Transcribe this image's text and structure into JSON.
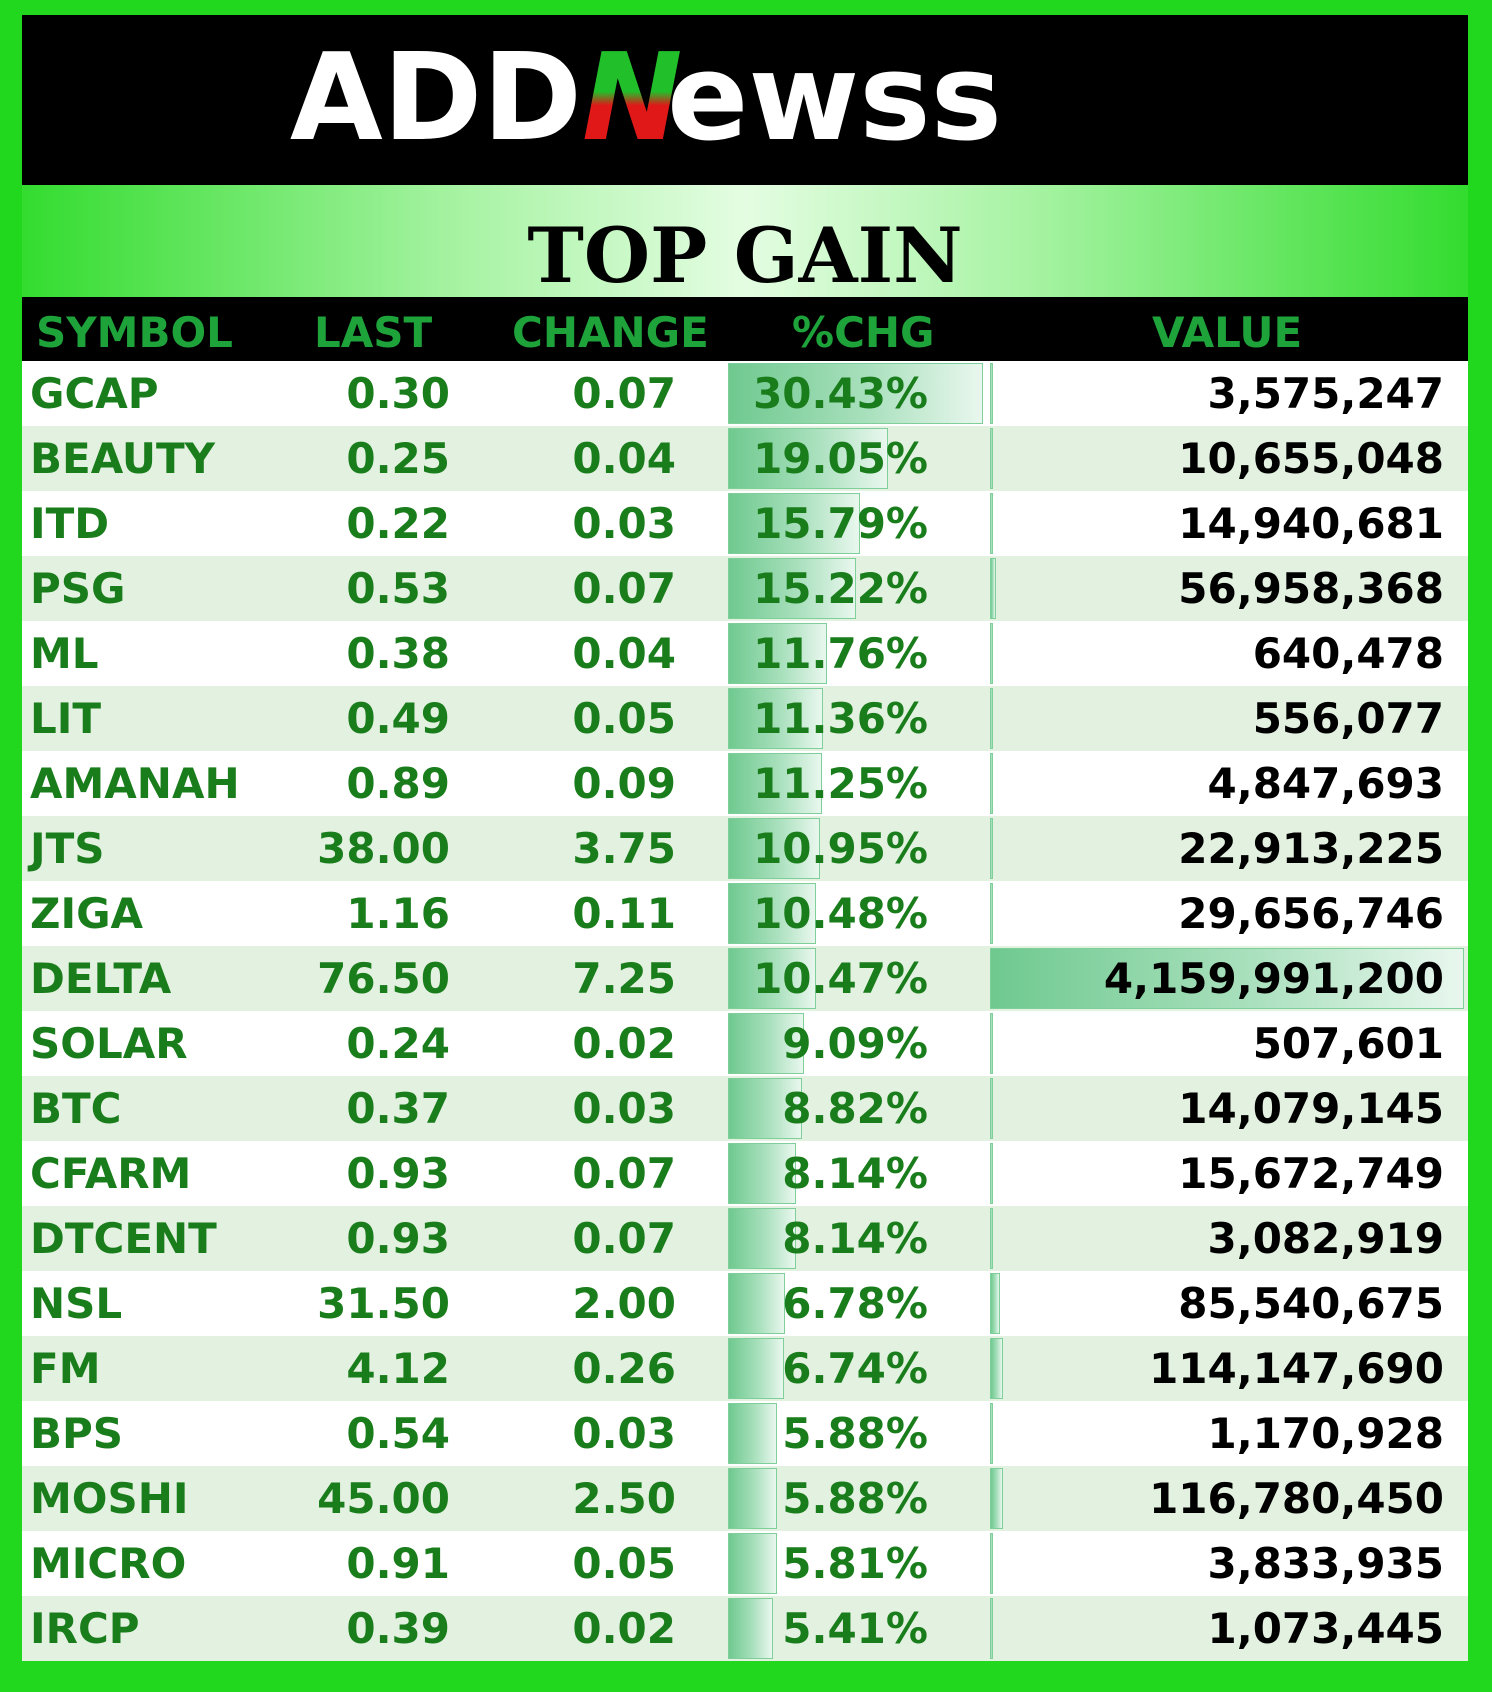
{
  "brand": {
    "logo_left": "ADD",
    "logo_mark": "N",
    "logo_right": "ewss"
  },
  "title": "TOP GAIN",
  "colors": {
    "border_green": "#22d81e",
    "header_text_green": "#1ea33b",
    "cell_text_green": "#1a7d1c",
    "row_alt": "#e3f1e0",
    "bar_fill": "#6fc98f"
  },
  "chart_data": {
    "type": "table",
    "columns": [
      "SYMBOL",
      "LAST",
      "CHANGE",
      "%CHG",
      "VALUE"
    ],
    "data_bars": {
      "columns": [
        "%CHG",
        "VALUE"
      ]
    },
    "rows": [
      {
        "symbol": "GCAP",
        "last": "0.30",
        "change": "0.07",
        "pct": "30.43%",
        "value": "3,575,247",
        "pct_num": 30.43,
        "value_num": 3575247
      },
      {
        "symbol": "BEAUTY",
        "last": "0.25",
        "change": "0.04",
        "pct": "19.05%",
        "value": "10,655,048",
        "pct_num": 19.05,
        "value_num": 10655048
      },
      {
        "symbol": "ITD",
        "last": "0.22",
        "change": "0.03",
        "pct": "15.79%",
        "value": "14,940,681",
        "pct_num": 15.79,
        "value_num": 14940681
      },
      {
        "symbol": "PSG",
        "last": "0.53",
        "change": "0.07",
        "pct": "15.22%",
        "value": "56,958,368",
        "pct_num": 15.22,
        "value_num": 56958368
      },
      {
        "symbol": "ML",
        "last": "0.38",
        "change": "0.04",
        "pct": "11.76%",
        "value": "640,478",
        "pct_num": 11.76,
        "value_num": 640478
      },
      {
        "symbol": "LIT",
        "last": "0.49",
        "change": "0.05",
        "pct": "11.36%",
        "value": "556,077",
        "pct_num": 11.36,
        "value_num": 556077
      },
      {
        "symbol": "AMANAH",
        "last": "0.89",
        "change": "0.09",
        "pct": "11.25%",
        "value": "4,847,693",
        "pct_num": 11.25,
        "value_num": 4847693
      },
      {
        "symbol": "JTS",
        "last": "38.00",
        "change": "3.75",
        "pct": "10.95%",
        "value": "22,913,225",
        "pct_num": 10.95,
        "value_num": 22913225
      },
      {
        "symbol": "ZIGA",
        "last": "1.16",
        "change": "0.11",
        "pct": "10.48%",
        "value": "29,656,746",
        "pct_num": 10.48,
        "value_num": 29656746
      },
      {
        "symbol": "DELTA",
        "last": "76.50",
        "change": "7.25",
        "pct": "10.47%",
        "value": "4,159,991,200",
        "pct_num": 10.47,
        "value_num": 4159991200
      },
      {
        "symbol": "SOLAR",
        "last": "0.24",
        "change": "0.02",
        "pct": "9.09%",
        "value": "507,601",
        "pct_num": 9.09,
        "value_num": 507601
      },
      {
        "symbol": "BTC",
        "last": "0.37",
        "change": "0.03",
        "pct": "8.82%",
        "value": "14,079,145",
        "pct_num": 8.82,
        "value_num": 14079145
      },
      {
        "symbol": "CFARM",
        "last": "0.93",
        "change": "0.07",
        "pct": "8.14%",
        "value": "15,672,749",
        "pct_num": 8.14,
        "value_num": 15672749
      },
      {
        "symbol": "DTCENT",
        "last": "0.93",
        "change": "0.07",
        "pct": "8.14%",
        "value": "3,082,919",
        "pct_num": 8.14,
        "value_num": 3082919
      },
      {
        "symbol": "NSL",
        "last": "31.50",
        "change": "2.00",
        "pct": "6.78%",
        "value": "85,540,675",
        "pct_num": 6.78,
        "value_num": 85540675
      },
      {
        "symbol": "FM",
        "last": "4.12",
        "change": "0.26",
        "pct": "6.74%",
        "value": "114,147,690",
        "pct_num": 6.74,
        "value_num": 114147690
      },
      {
        "symbol": "BPS",
        "last": "0.54",
        "change": "0.03",
        "pct": "5.88%",
        "value": "1,170,928",
        "pct_num": 5.88,
        "value_num": 1170928
      },
      {
        "symbol": "MOSHI",
        "last": "45.00",
        "change": "2.50",
        "pct": "5.88%",
        "value": "116,780,450",
        "pct_num": 5.88,
        "value_num": 116780450
      },
      {
        "symbol": "MICRO",
        "last": "0.91",
        "change": "0.05",
        "pct": "5.81%",
        "value": "3,833,935",
        "pct_num": 5.81,
        "value_num": 3833935
      },
      {
        "symbol": "IRCP",
        "last": "0.39",
        "change": "0.02",
        "pct": "5.41%",
        "value": "1,073,445",
        "pct_num": 5.41,
        "value_num": 1073445
      }
    ]
  }
}
